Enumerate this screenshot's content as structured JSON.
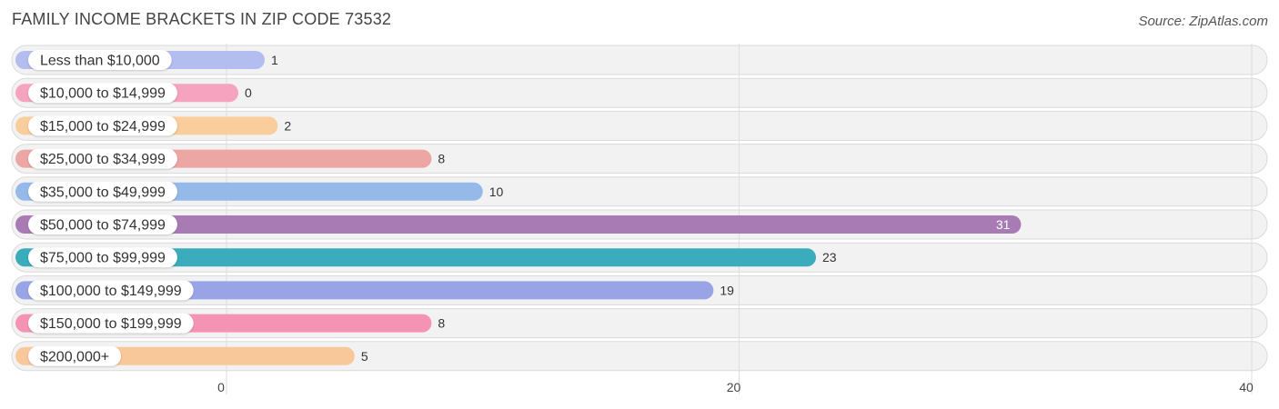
{
  "header": {
    "title": "FAMILY INCOME BRACKETS IN ZIP CODE 73532",
    "source": "Source: ZipAtlas.com"
  },
  "chart_data": {
    "type": "bar",
    "orientation": "horizontal",
    "title": "FAMILY INCOME BRACKETS IN ZIP CODE 73532",
    "categories": [
      "Less than $10,000",
      "$10,000 to $14,999",
      "$15,000 to $24,999",
      "$25,000 to $34,999",
      "$35,000 to $49,999",
      "$50,000 to $74,999",
      "$75,000 to $99,999",
      "$100,000 to $149,999",
      "$150,000 to $199,999",
      "$200,000+"
    ],
    "values": [
      1,
      0,
      2,
      8,
      10,
      31,
      23,
      19,
      8,
      5
    ],
    "colors": [
      "#b3bdf0",
      "#f5a3bf",
      "#f9cd9c",
      "#eca6a3",
      "#95b9e8",
      "#a97bb4",
      "#3aacbb",
      "#98a4e6",
      "#f593b4",
      "#f8c89a"
    ],
    "xlim": [
      0,
      40
    ],
    "xticks": [
      0,
      20,
      40
    ],
    "grid": true
  }
}
